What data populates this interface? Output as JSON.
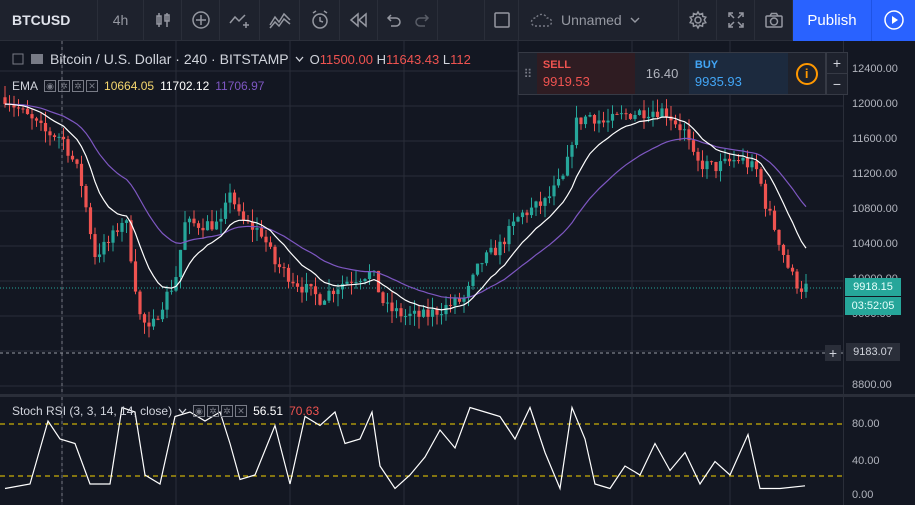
{
  "toolbar": {
    "symbol": "BTCUSD",
    "interval": "4h",
    "layout_name": "Unnamed",
    "publish_label": "Publish"
  },
  "legend": {
    "title": "Bitcoin / U.S. Dollar · 240 · BITSTAMP",
    "open_label": "O",
    "open_value": "11500.00",
    "high_label": "H",
    "high_value": "11643.43",
    "low_label": "L",
    "low_value": "112"
  },
  "ema": {
    "name": "EMA",
    "v1": "10664.05",
    "v2": "11702.12",
    "v3": "11706.97",
    "c1": "#f5d76e",
    "c2": "#ffffff",
    "c3": "#7e57c2"
  },
  "trade": {
    "sell_label": "SELL",
    "sell_value": "9919.53",
    "spread": "16.40",
    "buy_label": "BUY",
    "buy_value": "9935.93"
  },
  "rsi": {
    "name": "Stoch RSI (3, 3, 14, 14, close)",
    "v1": "56.51",
    "v2": "70.63",
    "c1": "#ffffff",
    "c2": "#ef5350"
  },
  "price_axis": [
    "12400.00",
    "12000.00",
    "11600.00",
    "11200.00",
    "10800.00",
    "10400.00",
    "10000.00",
    "9600.00",
    "8800.00"
  ],
  "rsi_axis": [
    "80.00",
    "40.00",
    "0.00"
  ],
  "last_price": "9918.15",
  "countdown": "03:52:05",
  "crosshair_price": "9183.07",
  "colors": {
    "up": "#26a69a",
    "down": "#ef5350",
    "ema_fast": "#ffffff",
    "ema_slow": "#7e57c2",
    "rsi_line": "#ffffff",
    "rsi_band": "#f5d300",
    "accent": "#2962ff"
  }
}
